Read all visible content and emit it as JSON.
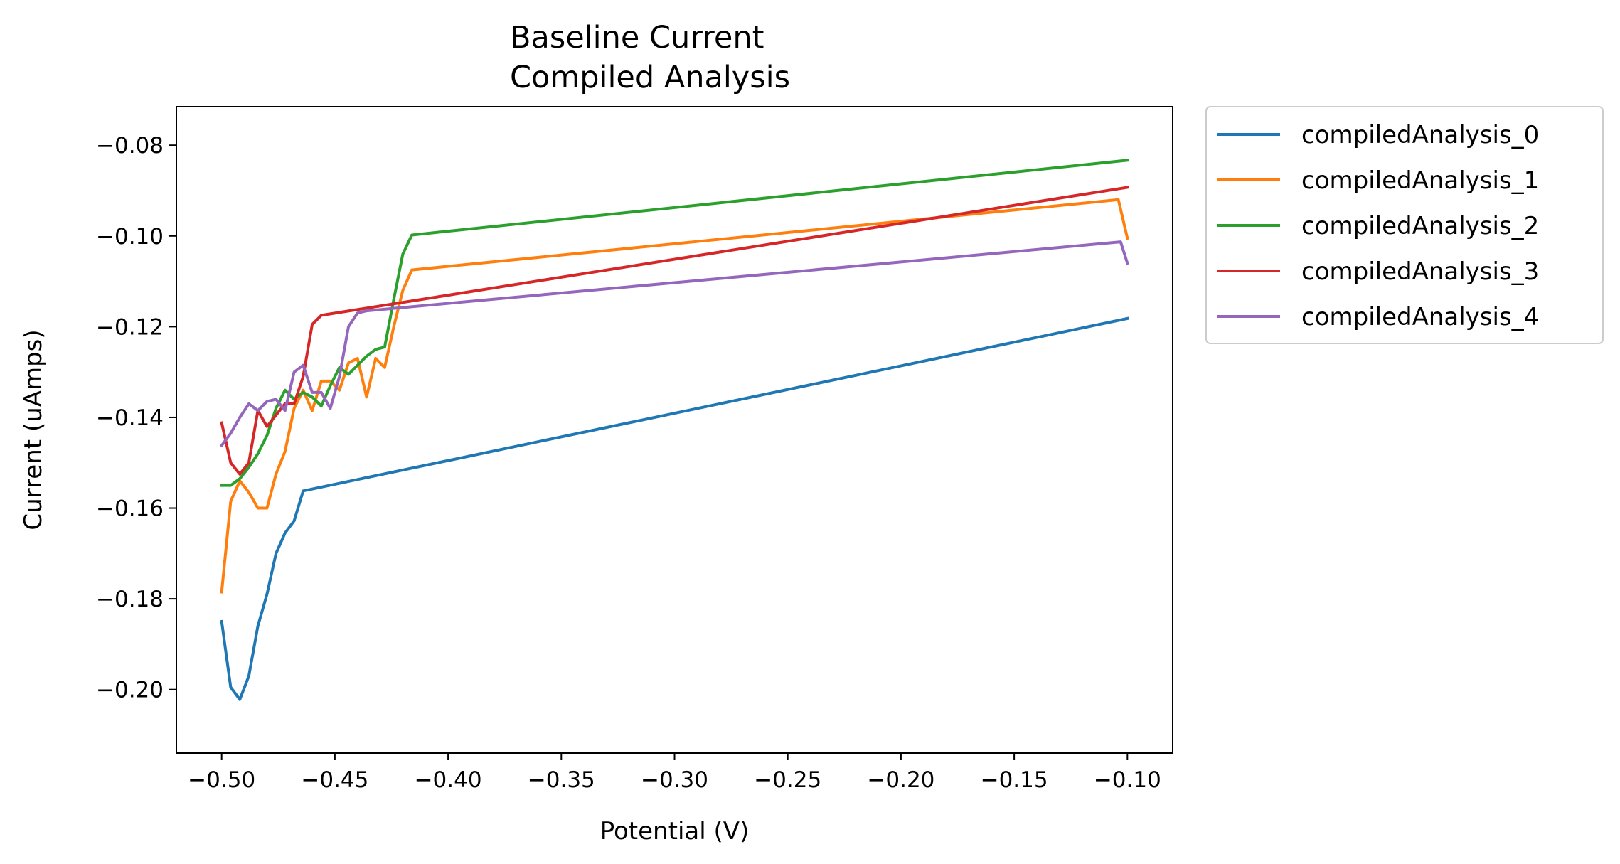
{
  "chart_data": {
    "type": "line",
    "title": "Baseline Current\nCompiled Analysis",
    "title_lines": [
      "Baseline Current",
      "Compiled Analysis"
    ],
    "xlabel": "Potential (V)",
    "ylabel": "Current (uAmps)",
    "xlim": [
      -0.52,
      -0.08
    ],
    "ylim": [
      -0.214,
      -0.0715
    ],
    "xticks": [
      -0.5,
      -0.45,
      -0.4,
      -0.35,
      -0.3,
      -0.25,
      -0.2,
      -0.15,
      -0.1
    ],
    "xtick_labels": [
      "−0.50",
      "−0.45",
      "−0.40",
      "−0.35",
      "−0.30",
      "−0.25",
      "−0.20",
      "−0.15",
      "−0.10"
    ],
    "yticks": [
      -0.2,
      -0.18,
      -0.16,
      -0.14,
      -0.12,
      -0.1,
      -0.08
    ],
    "ytick_labels": [
      "−0.20",
      "−0.18",
      "−0.16",
      "−0.14",
      "−0.12",
      "−0.10",
      "−0.08"
    ],
    "grid": false,
    "legend_position": "outside-top-right",
    "series": [
      {
        "name": "compiledAnalysis_0",
        "color": "#1f77b4",
        "x": [
          -0.5,
          -0.496,
          -0.492,
          -0.488,
          -0.484,
          -0.48,
          -0.476,
          -0.472,
          -0.468,
          -0.464,
          -0.1
        ],
        "y": [
          -0.185,
          -0.1995,
          -0.2022,
          -0.197,
          -0.186,
          -0.179,
          -0.17,
          -0.1655,
          -0.1628,
          -0.1562,
          -0.1182
        ]
      },
      {
        "name": "compiledAnalysis_1",
        "color": "#ff7f0e",
        "x": [
          -0.5,
          -0.496,
          -0.492,
          -0.488,
          -0.484,
          -0.48,
          -0.476,
          -0.472,
          -0.468,
          -0.464,
          -0.46,
          -0.456,
          -0.452,
          -0.448,
          -0.444,
          -0.44,
          -0.436,
          -0.432,
          -0.428,
          -0.424,
          -0.42,
          -0.416,
          -0.104,
          -0.1
        ],
        "y": [
          -0.1785,
          -0.1585,
          -0.154,
          -0.1565,
          -0.16,
          -0.16,
          -0.1525,
          -0.1475,
          -0.138,
          -0.134,
          -0.1385,
          -0.132,
          -0.132,
          -0.134,
          -0.128,
          -0.127,
          -0.1355,
          -0.127,
          -0.129,
          -0.12,
          -0.112,
          -0.1075,
          -0.092,
          -0.1005
        ]
      },
      {
        "name": "compiledAnalysis_2",
        "color": "#2ca02c",
        "x": [
          -0.5,
          -0.496,
          -0.492,
          -0.488,
          -0.484,
          -0.48,
          -0.476,
          -0.472,
          -0.468,
          -0.464,
          -0.46,
          -0.456,
          -0.452,
          -0.448,
          -0.444,
          -0.44,
          -0.436,
          -0.432,
          -0.428,
          -0.424,
          -0.42,
          -0.416,
          -0.1
        ],
        "y": [
          -0.155,
          -0.155,
          -0.1535,
          -0.151,
          -0.148,
          -0.144,
          -0.138,
          -0.134,
          -0.136,
          -0.1345,
          -0.1355,
          -0.1375,
          -0.133,
          -0.129,
          -0.1305,
          -0.1285,
          -0.1265,
          -0.125,
          -0.1245,
          -0.114,
          -0.104,
          -0.0998,
          -0.0833
        ]
      },
      {
        "name": "compiledAnalysis_3",
        "color": "#d62728",
        "x": [
          -0.5,
          -0.496,
          -0.492,
          -0.488,
          -0.484,
          -0.48,
          -0.476,
          -0.472,
          -0.468,
          -0.464,
          -0.46,
          -0.456,
          -0.1
        ],
        "y": [
          -0.1412,
          -0.15,
          -0.1525,
          -0.15,
          -0.1385,
          -0.142,
          -0.1395,
          -0.137,
          -0.137,
          -0.131,
          -0.1195,
          -0.1175,
          -0.0893
        ]
      },
      {
        "name": "compiledAnalysis_4",
        "color": "#9467bd",
        "x": [
          -0.5,
          -0.496,
          -0.492,
          -0.488,
          -0.484,
          -0.48,
          -0.476,
          -0.472,
          -0.468,
          -0.464,
          -0.46,
          -0.456,
          -0.452,
          -0.448,
          -0.444,
          -0.44,
          -0.436,
          -0.103,
          -0.1
        ],
        "y": [
          -0.1462,
          -0.1435,
          -0.14,
          -0.137,
          -0.1385,
          -0.1365,
          -0.136,
          -0.1385,
          -0.13,
          -0.1285,
          -0.1345,
          -0.1345,
          -0.138,
          -0.131,
          -0.12,
          -0.117,
          -0.1165,
          -0.1013,
          -0.106
        ]
      }
    ]
  }
}
